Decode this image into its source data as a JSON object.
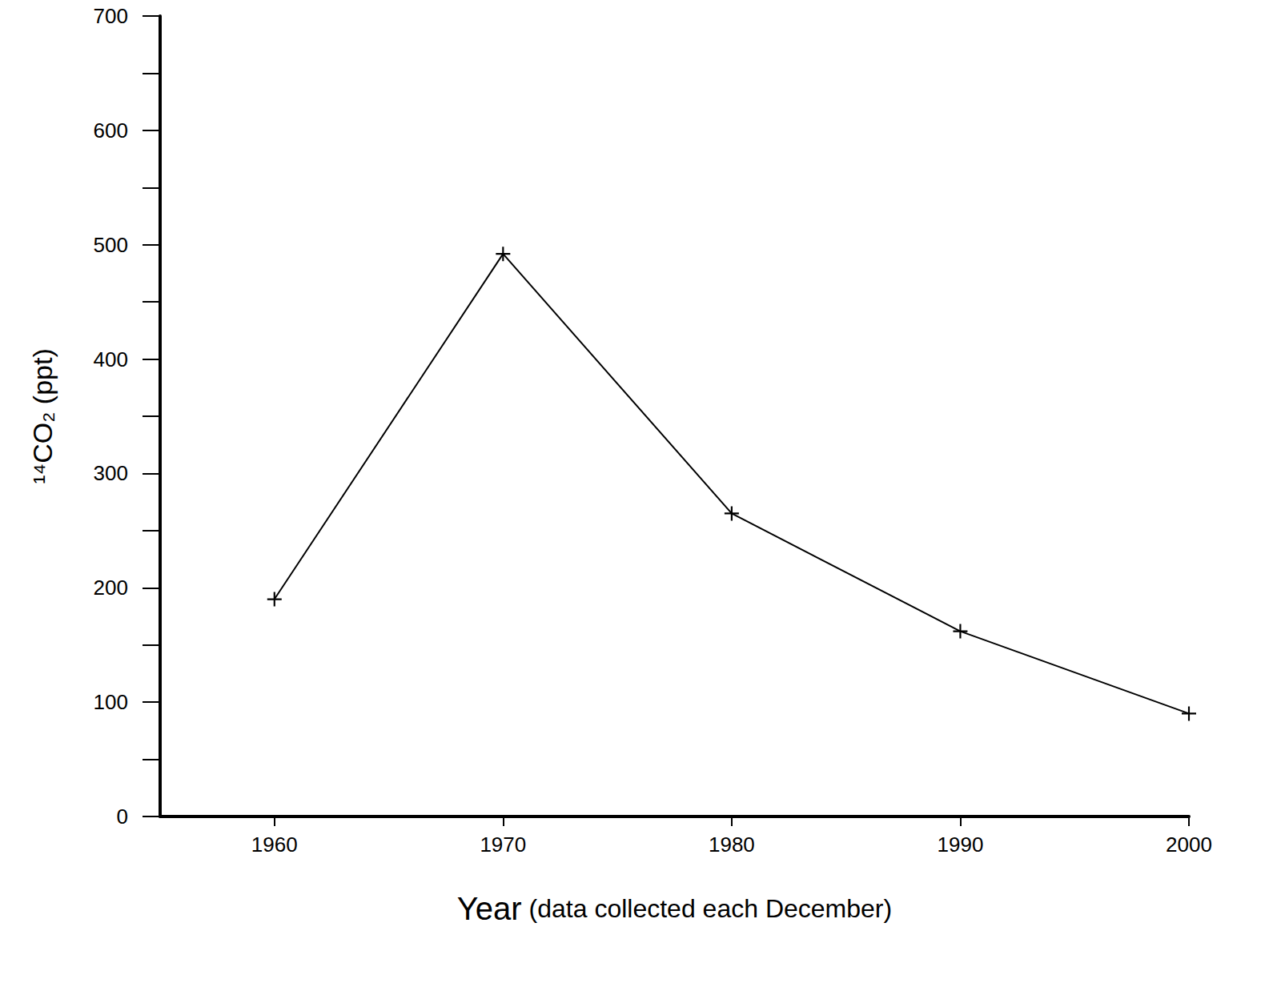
{
  "chart_data": {
    "type": "line",
    "x_label": "Year (data collected each December)",
    "y_label": "¹⁴CO₂ (ppt)",
    "x": [
      1960,
      1970,
      1980,
      1990,
      2000
    ],
    "series": [
      {
        "values": [
          190,
          492,
          265,
          162,
          90
        ],
        "color": "#000000",
        "marker": "plus",
        "line_style": "solid"
      }
    ],
    "xlim": [
      1955,
      2000
    ],
    "xticks": [
      1960,
      1970,
      1980,
      1990,
      2000
    ],
    "ylim": [
      0,
      700
    ],
    "yticks": [
      0,
      100,
      200,
      300,
      400,
      500,
      600,
      700
    ],
    "grid": false
  }
}
